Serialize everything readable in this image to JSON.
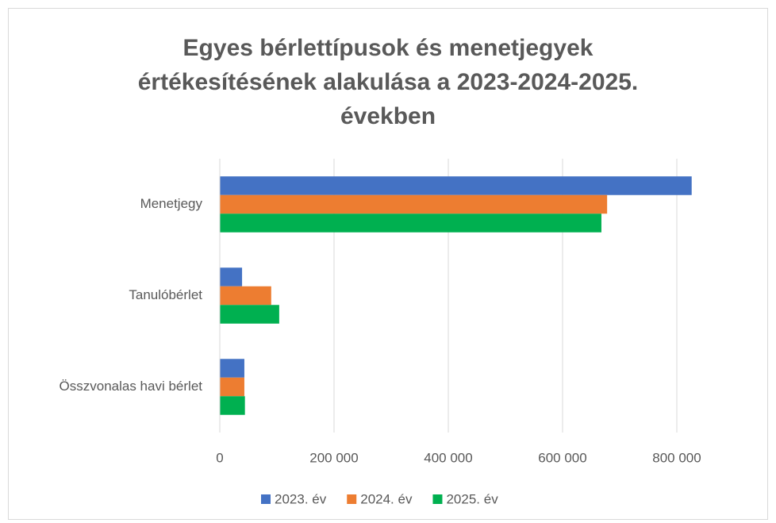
{
  "chart_data": {
    "type": "bar",
    "orientation": "horizontal",
    "title": [
      "Egyes bérlettípusok és menetjegyek",
      "értékesítésének alakulása a 2023-2024-2025.",
      "években"
    ],
    "categories": [
      "Menetjegy",
      "Tanulóbérlet",
      "Összvonalas havi bérlet"
    ],
    "series": [
      {
        "name": "2023. év",
        "color": "#4472c4",
        "values": [
          826000,
          39000,
          43000
        ]
      },
      {
        "name": "2024. év",
        "color": "#ed7d31",
        "values": [
          678000,
          90000,
          43000
        ]
      },
      {
        "name": "2025. év",
        "color": "#00b050",
        "values": [
          668000,
          104000,
          44000
        ]
      }
    ],
    "xlim": [
      0,
      900000
    ],
    "xticks": [
      0,
      {
        "value": 200000,
        "label": "200 000"
      },
      {
        "value": 400000,
        "label": "400 000"
      },
      {
        "value": 600000,
        "label": "600 000"
      },
      {
        "value": 800000,
        "label": "800 000"
      }
    ],
    "grid": true,
    "legend": "bottom"
  }
}
